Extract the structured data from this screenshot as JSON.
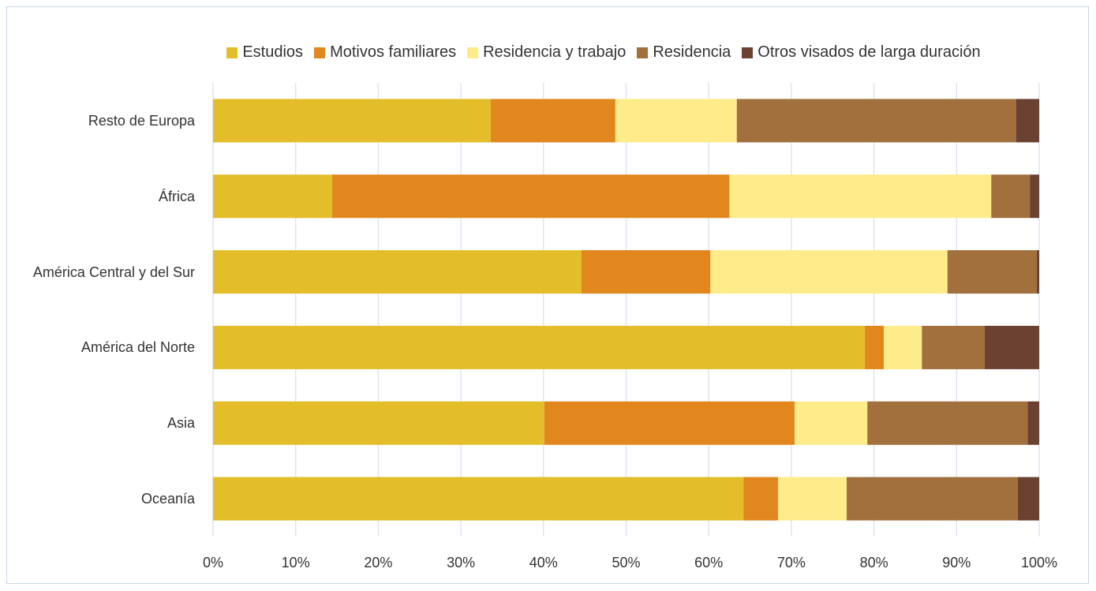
{
  "chart_data": {
    "type": "stacked_barh",
    "categories": [
      "Resto de Europa",
      "África",
      "América Central y del Sur",
      "América del Norte",
      "Asia",
      "Oceanía"
    ],
    "series": [
      {
        "name": "Estudios",
        "color": "#e3be2a",
        "values": [
          33.6,
          14.4,
          44.6,
          78.9,
          40.1,
          64.2
        ]
      },
      {
        "name": "Motivos familiares",
        "color": "#e2861e",
        "values": [
          15.1,
          48.1,
          15.6,
          2.3,
          30.3,
          4.2
        ]
      },
      {
        "name": "Residencia y trabajo",
        "color": "#feeb8a",
        "values": [
          14.7,
          31.7,
          28.7,
          4.6,
          8.8,
          8.3
        ]
      },
      {
        "name": "Residencia",
        "color": "#a1703c",
        "values": [
          33.8,
          4.7,
          10.8,
          7.6,
          19.4,
          20.7
        ]
      },
      {
        "name": "Otros visados de larga duración",
        "color": "#6b4132",
        "values": [
          2.8,
          1.1,
          0.3,
          6.6,
          1.4,
          2.6
        ]
      }
    ],
    "xlim": [
      0,
      100
    ],
    "xticks": [
      {
        "value": 0,
        "label": "0%"
      },
      {
        "value": 10,
        "label": "10%"
      },
      {
        "value": 20,
        "label": "20%"
      },
      {
        "value": 30,
        "label": "30%"
      },
      {
        "value": 40,
        "label": "40%"
      },
      {
        "value": 50,
        "label": "50%"
      },
      {
        "value": 60,
        "label": "60%"
      },
      {
        "value": 70,
        "label": "70%"
      },
      {
        "value": 80,
        "label": "80%"
      },
      {
        "value": 90,
        "label": "90%"
      },
      {
        "value": 100,
        "label": "100%"
      }
    ],
    "grid": true,
    "legend": "top"
  }
}
